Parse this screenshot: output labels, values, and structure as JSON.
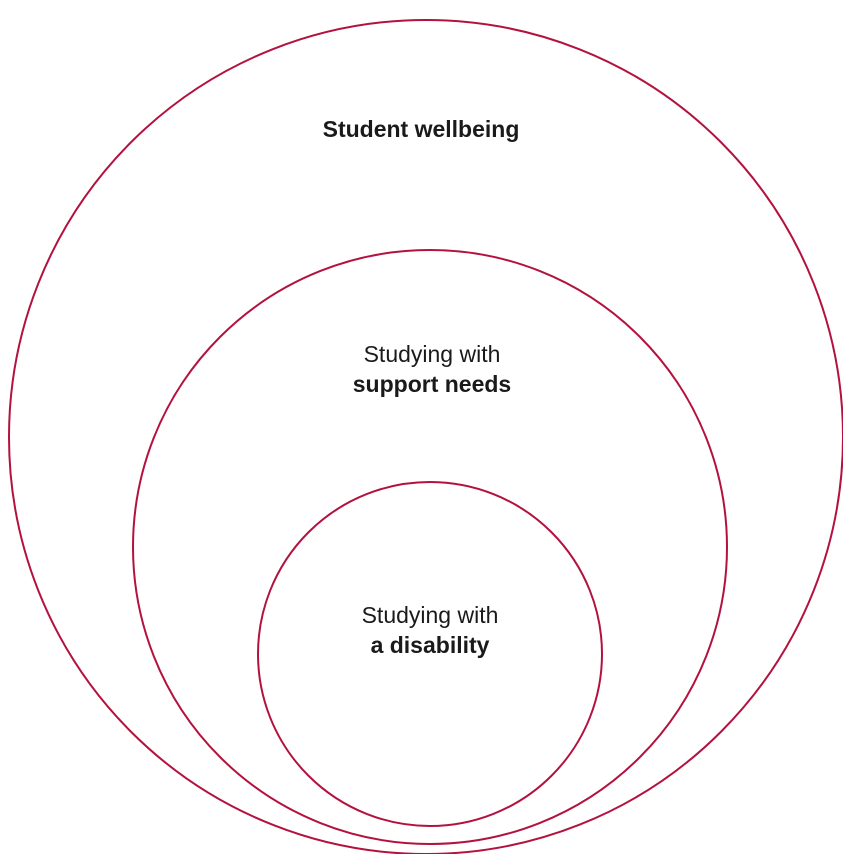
{
  "diagram": {
    "stroke_color": "#b3123f",
    "circles": [
      {
        "id": "student-wellbeing",
        "line1": "",
        "line2": "Student wellbeing"
      },
      {
        "id": "support-needs",
        "line1": "Studying with",
        "line2": "support needs"
      },
      {
        "id": "disability",
        "line1": "Studying with",
        "line2": "a disability"
      }
    ]
  }
}
